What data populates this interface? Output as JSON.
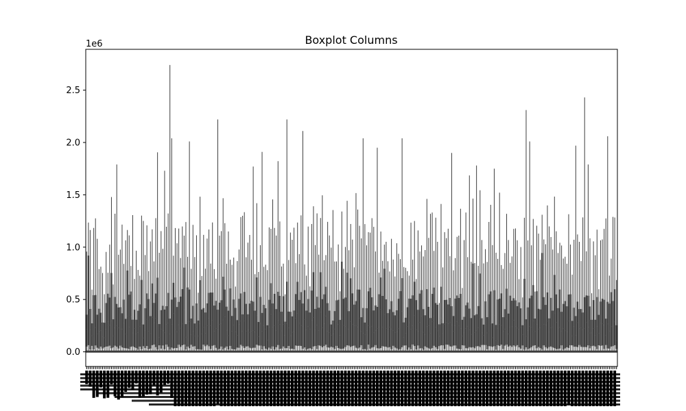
{
  "chart_data": {
    "type": "boxplot",
    "title": "Boxplot Columns",
    "xlabel": "",
    "ylabel": "",
    "y_scale_offset": "1e6",
    "ylim": [
      -0.14,
      2.89
    ],
    "y_ticks": [
      {
        "value": 0.0,
        "label": "0.0"
      },
      {
        "value": 0.5,
        "label": "0.5"
      },
      {
        "value": 1.0,
        "label": "1.0"
      },
      {
        "value": 1.5,
        "label": "1.5"
      },
      {
        "value": 2.0,
        "label": "2.0"
      },
      {
        "value": 2.5,
        "label": "2.5"
      }
    ],
    "box_color": "#3d3d3d",
    "grid": false,
    "n_columns": 300,
    "tallest_whisker_peaks": [
      {
        "x_fraction": 0.155,
        "value": 2.74
      },
      {
        "x_fraction": 0.935,
        "value": 2.43
      },
      {
        "x_fraction": 0.825,
        "value": 2.31
      },
      {
        "x_fraction": 0.247,
        "value": 2.22
      },
      {
        "x_fraction": 0.378,
        "value": 2.22
      },
      {
        "x_fraction": 0.406,
        "value": 2.11
      },
      {
        "x_fraction": 0.521,
        "value": 2.04
      },
      {
        "x_fraction": 0.593,
        "value": 2.04
      },
      {
        "x_fraction": 0.159,
        "value": 2.04
      },
      {
        "x_fraction": 0.194,
        "value": 2.01
      },
      {
        "x_fraction": 0.833,
        "value": 2.01
      },
      {
        "x_fraction": 0.981,
        "value": 2.06
      },
      {
        "x_fraction": 0.92,
        "value": 1.97
      },
      {
        "x_fraction": 0.548,
        "value": 1.95
      },
      {
        "x_fraction": 0.331,
        "value": 1.91
      },
      {
        "x_fraction": 0.685,
        "value": 1.9
      },
      {
        "x_fraction": 0.055,
        "value": 1.79
      },
      {
        "x_fraction": 0.943,
        "value": 1.79
      },
      {
        "x_fraction": 0.313,
        "value": 1.77
      },
      {
        "x_fraction": 0.732,
        "value": 1.78
      },
      {
        "x_fraction": 0.148,
        "value": 1.73
      },
      {
        "x_fraction": 0.766,
        "value": 1.75
      }
    ]
  }
}
